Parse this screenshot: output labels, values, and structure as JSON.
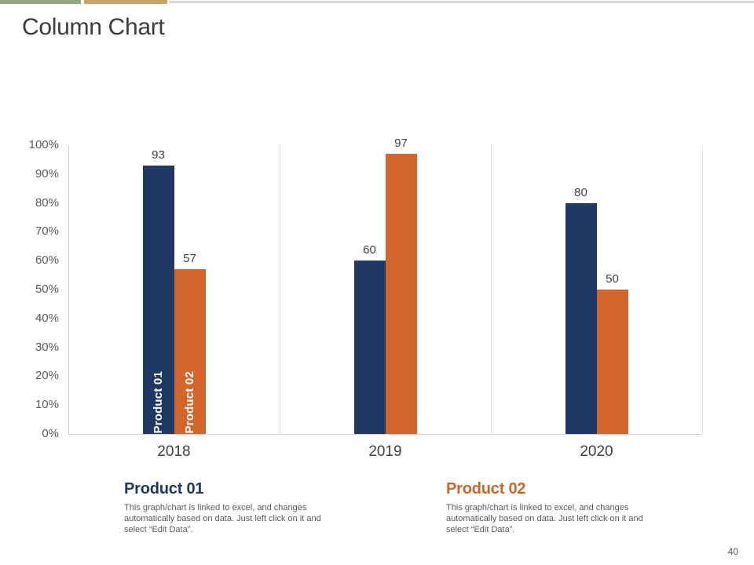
{
  "slide": {
    "title": "Column Chart",
    "page_number": "40"
  },
  "accents": {
    "stripe_green": "#8ea97d",
    "stripe_tan": "#c9a26b",
    "stripe_gray": "#d9d9d9",
    "product1_color": "#1f3864",
    "product2_color": "#d2662a",
    "legend2_heading_color": "#c8662c"
  },
  "chart_data": {
    "type": "bar",
    "categories": [
      "2018",
      "2019",
      "2020"
    ],
    "series": [
      {
        "name": "Product 01",
        "color": "#1f3864",
        "values": [
          93,
          60,
          80
        ]
      },
      {
        "name": "Product 02",
        "color": "#d2662a",
        "values": [
          57,
          97,
          50
        ]
      }
    ],
    "title": "Column Chart",
    "xlabel": "",
    "ylabel": "",
    "ylim": [
      0,
      100
    ],
    "yticks": [
      "0%",
      "10%",
      "20%",
      "30%",
      "40%",
      "50%",
      "60%",
      "70%",
      "80%",
      "90%",
      "100%"
    ],
    "grid": "vertical category separators only",
    "value_labels": "above each bar",
    "series_labels_inside_bars_of_first_category": true
  },
  "legend": [
    {
      "name": "Product 01",
      "description": "This graph/chart is linked to excel, and changes automatically based on data. Just left click on it and select “Edit Data”."
    },
    {
      "name": "Product 02",
      "description": "This graph/chart is linked to excel, and changes automatically based on data. Just left click on it and select “Edit Data”."
    }
  ]
}
